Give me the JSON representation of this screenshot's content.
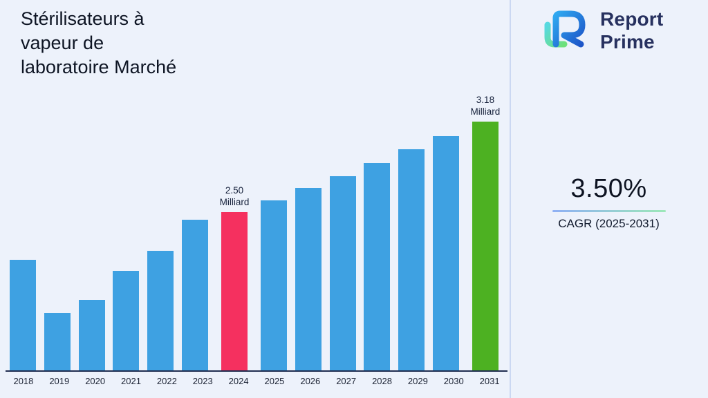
{
  "page": {
    "background": "#edf2fb",
    "divider_color": "#cbd8f2"
  },
  "header": {
    "title_lines": [
      "Stérilisateurs à",
      "vapeur de",
      "laboratoire Marché"
    ],
    "logo": {
      "name": "Report Prime",
      "line1": "Report",
      "line2": "Prime",
      "text_color": "#27315f"
    }
  },
  "stats": {
    "cagr_value": "3.50%",
    "cagr_label": "CAGR (2025-2031)"
  },
  "chart_data": {
    "type": "bar",
    "title": "Stérilisateurs à vapeur de laboratoire Marché",
    "unit": "Milliard",
    "xlabel": "",
    "ylabel": "",
    "categories": [
      "2018",
      "2019",
      "2020",
      "2021",
      "2022",
      "2023",
      "2024",
      "2025",
      "2026",
      "2027",
      "2028",
      "2029",
      "2030",
      "2031"
    ],
    "values": [
      2.14,
      1.74,
      1.84,
      2.06,
      2.21,
      2.44,
      2.5,
      2.59,
      2.68,
      2.77,
      2.87,
      2.97,
      3.07,
      3.18
    ],
    "colors": [
      "#3ea1e2",
      "#3ea1e2",
      "#3ea1e2",
      "#3ea1e2",
      "#3ea1e2",
      "#3ea1e2",
      "#f5305f",
      "#3ea1e2",
      "#3ea1e2",
      "#3ea1e2",
      "#3ea1e2",
      "#3ea1e2",
      "#3ea1e2",
      "#4db122"
    ],
    "annotations": [
      {
        "category": "2024",
        "label": "2.50 Milliard"
      },
      {
        "category": "2031",
        "label": "3.18 Milliard"
      }
    ],
    "ylim": [
      1.31,
      3.18
    ],
    "grid": false,
    "legend": false
  }
}
